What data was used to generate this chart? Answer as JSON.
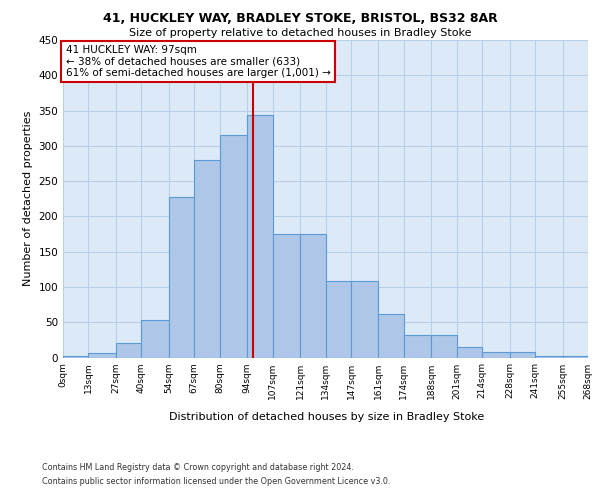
{
  "title1": "41, HUCKLEY WAY, BRADLEY STOKE, BRISTOL, BS32 8AR",
  "title2": "Size of property relative to detached houses in Bradley Stoke",
  "xlabel": "Distribution of detached houses by size in Bradley Stoke",
  "ylabel": "Number of detached properties",
  "footer1": "Contains HM Land Registry data © Crown copyright and database right 2024.",
  "footer2": "Contains public sector information licensed under the Open Government Licence v3.0.",
  "property_size": 97,
  "property_label": "41 HUCKLEY WAY: 97sqm",
  "annotation_line1": "← 38% of detached houses are smaller (633)",
  "annotation_line2": "61% of semi-detached houses are larger (1,001) →",
  "bar_edges": [
    0,
    13,
    27,
    40,
    54,
    67,
    80,
    94,
    107,
    121,
    134,
    147,
    161,
    174,
    188,
    201,
    214,
    228,
    241,
    255,
    268
  ],
  "bar_heights": [
    2,
    6,
    20,
    53,
    228,
    280,
    316,
    344,
    175,
    175,
    108,
    108,
    62,
    32,
    32,
    15,
    8,
    8,
    2,
    2
  ],
  "bar_color": "#aec6e8",
  "bar_edge_color": "#5b9bd5",
  "vline_x": 97,
  "vline_color": "#cc0000",
  "annotation_box_color": "#cc0000",
  "annotation_fill": "#ffffff",
  "ylim": [
    0,
    450
  ],
  "yticks": [
    0,
    50,
    100,
    150,
    200,
    250,
    300,
    350,
    400,
    450
  ],
  "bg_color": "#dce9f7",
  "plot_bg": "#ffffff",
  "grid_color": "#b8cfe8"
}
